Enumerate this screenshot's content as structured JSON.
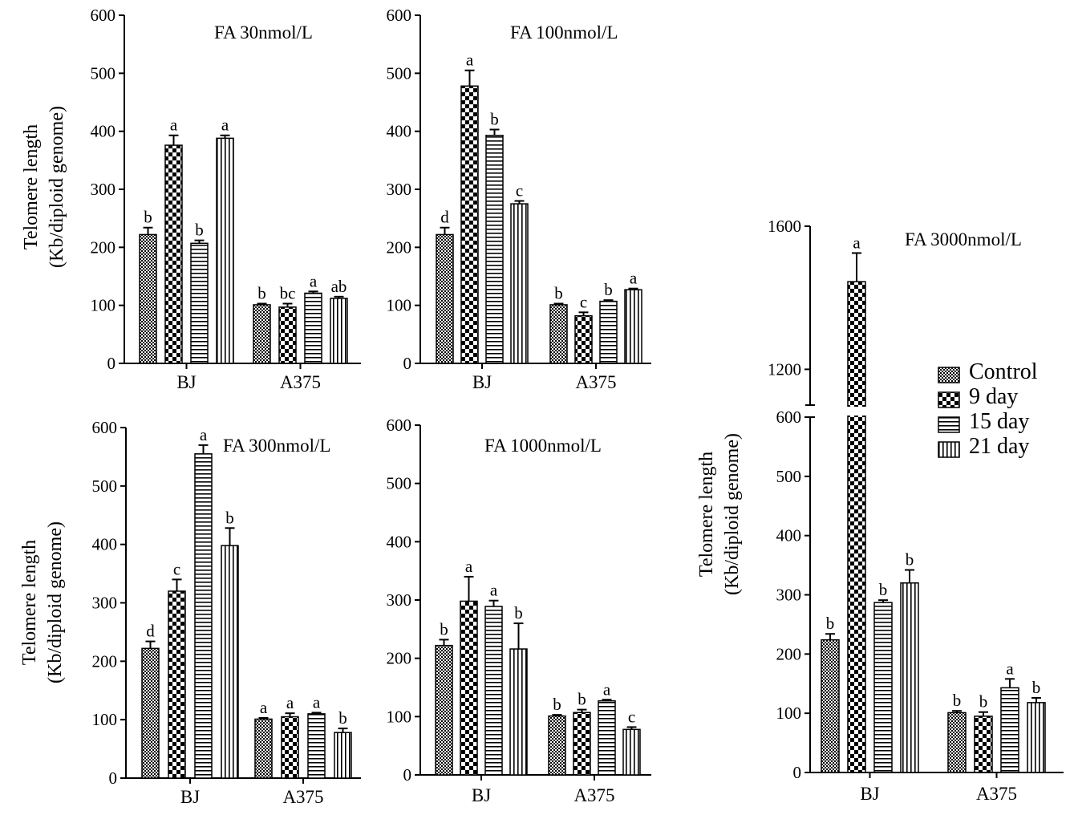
{
  "colors": {
    "ink": "#000000",
    "background": "#ffffff"
  },
  "legend": {
    "entries": [
      {
        "label": "Control",
        "pattern": "fine-check"
      },
      {
        "label": "9 day",
        "pattern": "coarse-check"
      },
      {
        "label": "15 day",
        "pattern": "horizontal-lines"
      },
      {
        "label": "21 day",
        "pattern": "vertical-lines"
      }
    ]
  },
  "chart_data": [
    {
      "id": "fa30",
      "type": "bar",
      "title": "FA 30nmol/L",
      "ylabel": [
        "Telomere length",
        "(Kb/diploid genome)"
      ],
      "xlabel": "",
      "categories": [
        "BJ",
        "A375"
      ],
      "ylim": [
        0,
        600
      ],
      "yticks": [
        0,
        100,
        200,
        300,
        400,
        500,
        600
      ],
      "series": [
        {
          "name": "Control",
          "values": [
            222,
            101
          ],
          "errors": [
            12,
            2
          ],
          "letters": [
            "b",
            "b"
          ]
        },
        {
          "name": "9 day",
          "values": [
            376,
            97
          ],
          "errors": [
            17,
            6
          ],
          "letters": [
            "a",
            "bc"
          ]
        },
        {
          "name": "15 day",
          "values": [
            207,
            121
          ],
          "errors": [
            5,
            3
          ],
          "letters": [
            "b",
            "a"
          ]
        },
        {
          "name": "21 day",
          "values": [
            388,
            112
          ],
          "errors": [
            5,
            3
          ],
          "letters": [
            "a",
            "ab"
          ]
        }
      ]
    },
    {
      "id": "fa100",
      "type": "bar",
      "title": "FA 100nmol/L",
      "ylabel": null,
      "xlabel": "",
      "categories": [
        "BJ",
        "A375"
      ],
      "ylim": [
        0,
        600
      ],
      "yticks": [
        0,
        100,
        200,
        300,
        400,
        500,
        600
      ],
      "series": [
        {
          "name": "Control",
          "values": [
            222,
            101
          ],
          "errors": [
            12,
            2
          ],
          "letters": [
            "d",
            "b"
          ]
        },
        {
          "name": "9 day",
          "values": [
            478,
            82
          ],
          "errors": [
            27,
            6
          ],
          "letters": [
            "a",
            "c"
          ]
        },
        {
          "name": "15 day",
          "values": [
            393,
            107
          ],
          "errors": [
            10,
            2
          ],
          "letters": [
            "b",
            "b"
          ]
        },
        {
          "name": "21 day",
          "values": [
            275,
            127
          ],
          "errors": [
            5,
            2
          ],
          "letters": [
            "c",
            "a"
          ]
        }
      ]
    },
    {
      "id": "fa300",
      "type": "bar",
      "title": "FA 300nmol/L",
      "ylabel": [
        "Telomere length",
        "(Kb/diploid genome)"
      ],
      "xlabel": "",
      "categories": [
        "BJ",
        "A375"
      ],
      "ylim": [
        0,
        600
      ],
      "yticks": [
        0,
        100,
        200,
        300,
        400,
        500,
        600
      ],
      "series": [
        {
          "name": "Control",
          "values": [
            222,
            101
          ],
          "errors": [
            12,
            2
          ],
          "letters": [
            "d",
            "a"
          ]
        },
        {
          "name": "9 day",
          "values": [
            320,
            105
          ],
          "errors": [
            20,
            6
          ],
          "letters": [
            "c",
            "a"
          ]
        },
        {
          "name": "15 day",
          "values": [
            555,
            110
          ],
          "errors": [
            15,
            2
          ],
          "letters": [
            "a",
            "a"
          ]
        },
        {
          "name": "21 day",
          "values": [
            398,
            78
          ],
          "errors": [
            30,
            7
          ],
          "letters": [
            "b",
            "b"
          ]
        }
      ]
    },
    {
      "id": "fa1000",
      "type": "bar",
      "title": "FA 1000nmol/L",
      "ylabel": null,
      "xlabel": "",
      "categories": [
        "BJ",
        "A375"
      ],
      "ylim": [
        0,
        600
      ],
      "yticks": [
        0,
        100,
        200,
        300,
        400,
        500,
        600
      ],
      "series": [
        {
          "name": "Control",
          "values": [
            222,
            101
          ],
          "errors": [
            10,
            2
          ],
          "letters": [
            "b",
            "b"
          ]
        },
        {
          "name": "9 day",
          "values": [
            298,
            107
          ],
          "errors": [
            42,
            5
          ],
          "letters": [
            "a",
            "b"
          ]
        },
        {
          "name": "15 day",
          "values": [
            289,
            127
          ],
          "errors": [
            10,
            2
          ],
          "letters": [
            "a",
            "a"
          ]
        },
        {
          "name": "21 day",
          "values": [
            216,
            78
          ],
          "errors": [
            44,
            4
          ],
          "letters": [
            "b",
            "c"
          ]
        }
      ]
    },
    {
      "id": "fa3000",
      "type": "bar",
      "title": "FA 3000nmol/L",
      "ylabel": [
        "Telomere length",
        "(Kb/diploid genome)"
      ],
      "xlabel": "",
      "categories": [
        "BJ",
        "A375"
      ],
      "ylim": [
        0,
        1600
      ],
      "axis_break": [
        600,
        1100
      ],
      "yticks": [
        0,
        100,
        200,
        300,
        400,
        500,
        600,
        1200,
        1600
      ],
      "series": [
        {
          "name": "Control",
          "values": [
            224,
            101
          ],
          "errors": [
            10,
            3
          ],
          "letters": [
            "b",
            "b"
          ]
        },
        {
          "name": "9 day",
          "values": [
            1445,
            95
          ],
          "errors": [
            80,
            7
          ],
          "letters": [
            "a",
            "b"
          ]
        },
        {
          "name": "15 day",
          "values": [
            287,
            143
          ],
          "errors": [
            4,
            15
          ],
          "letters": [
            "b",
            "a"
          ]
        },
        {
          "name": "21 day",
          "values": [
            320,
            118
          ],
          "errors": [
            22,
            8
          ],
          "letters": [
            "b",
            "b"
          ]
        }
      ]
    }
  ]
}
